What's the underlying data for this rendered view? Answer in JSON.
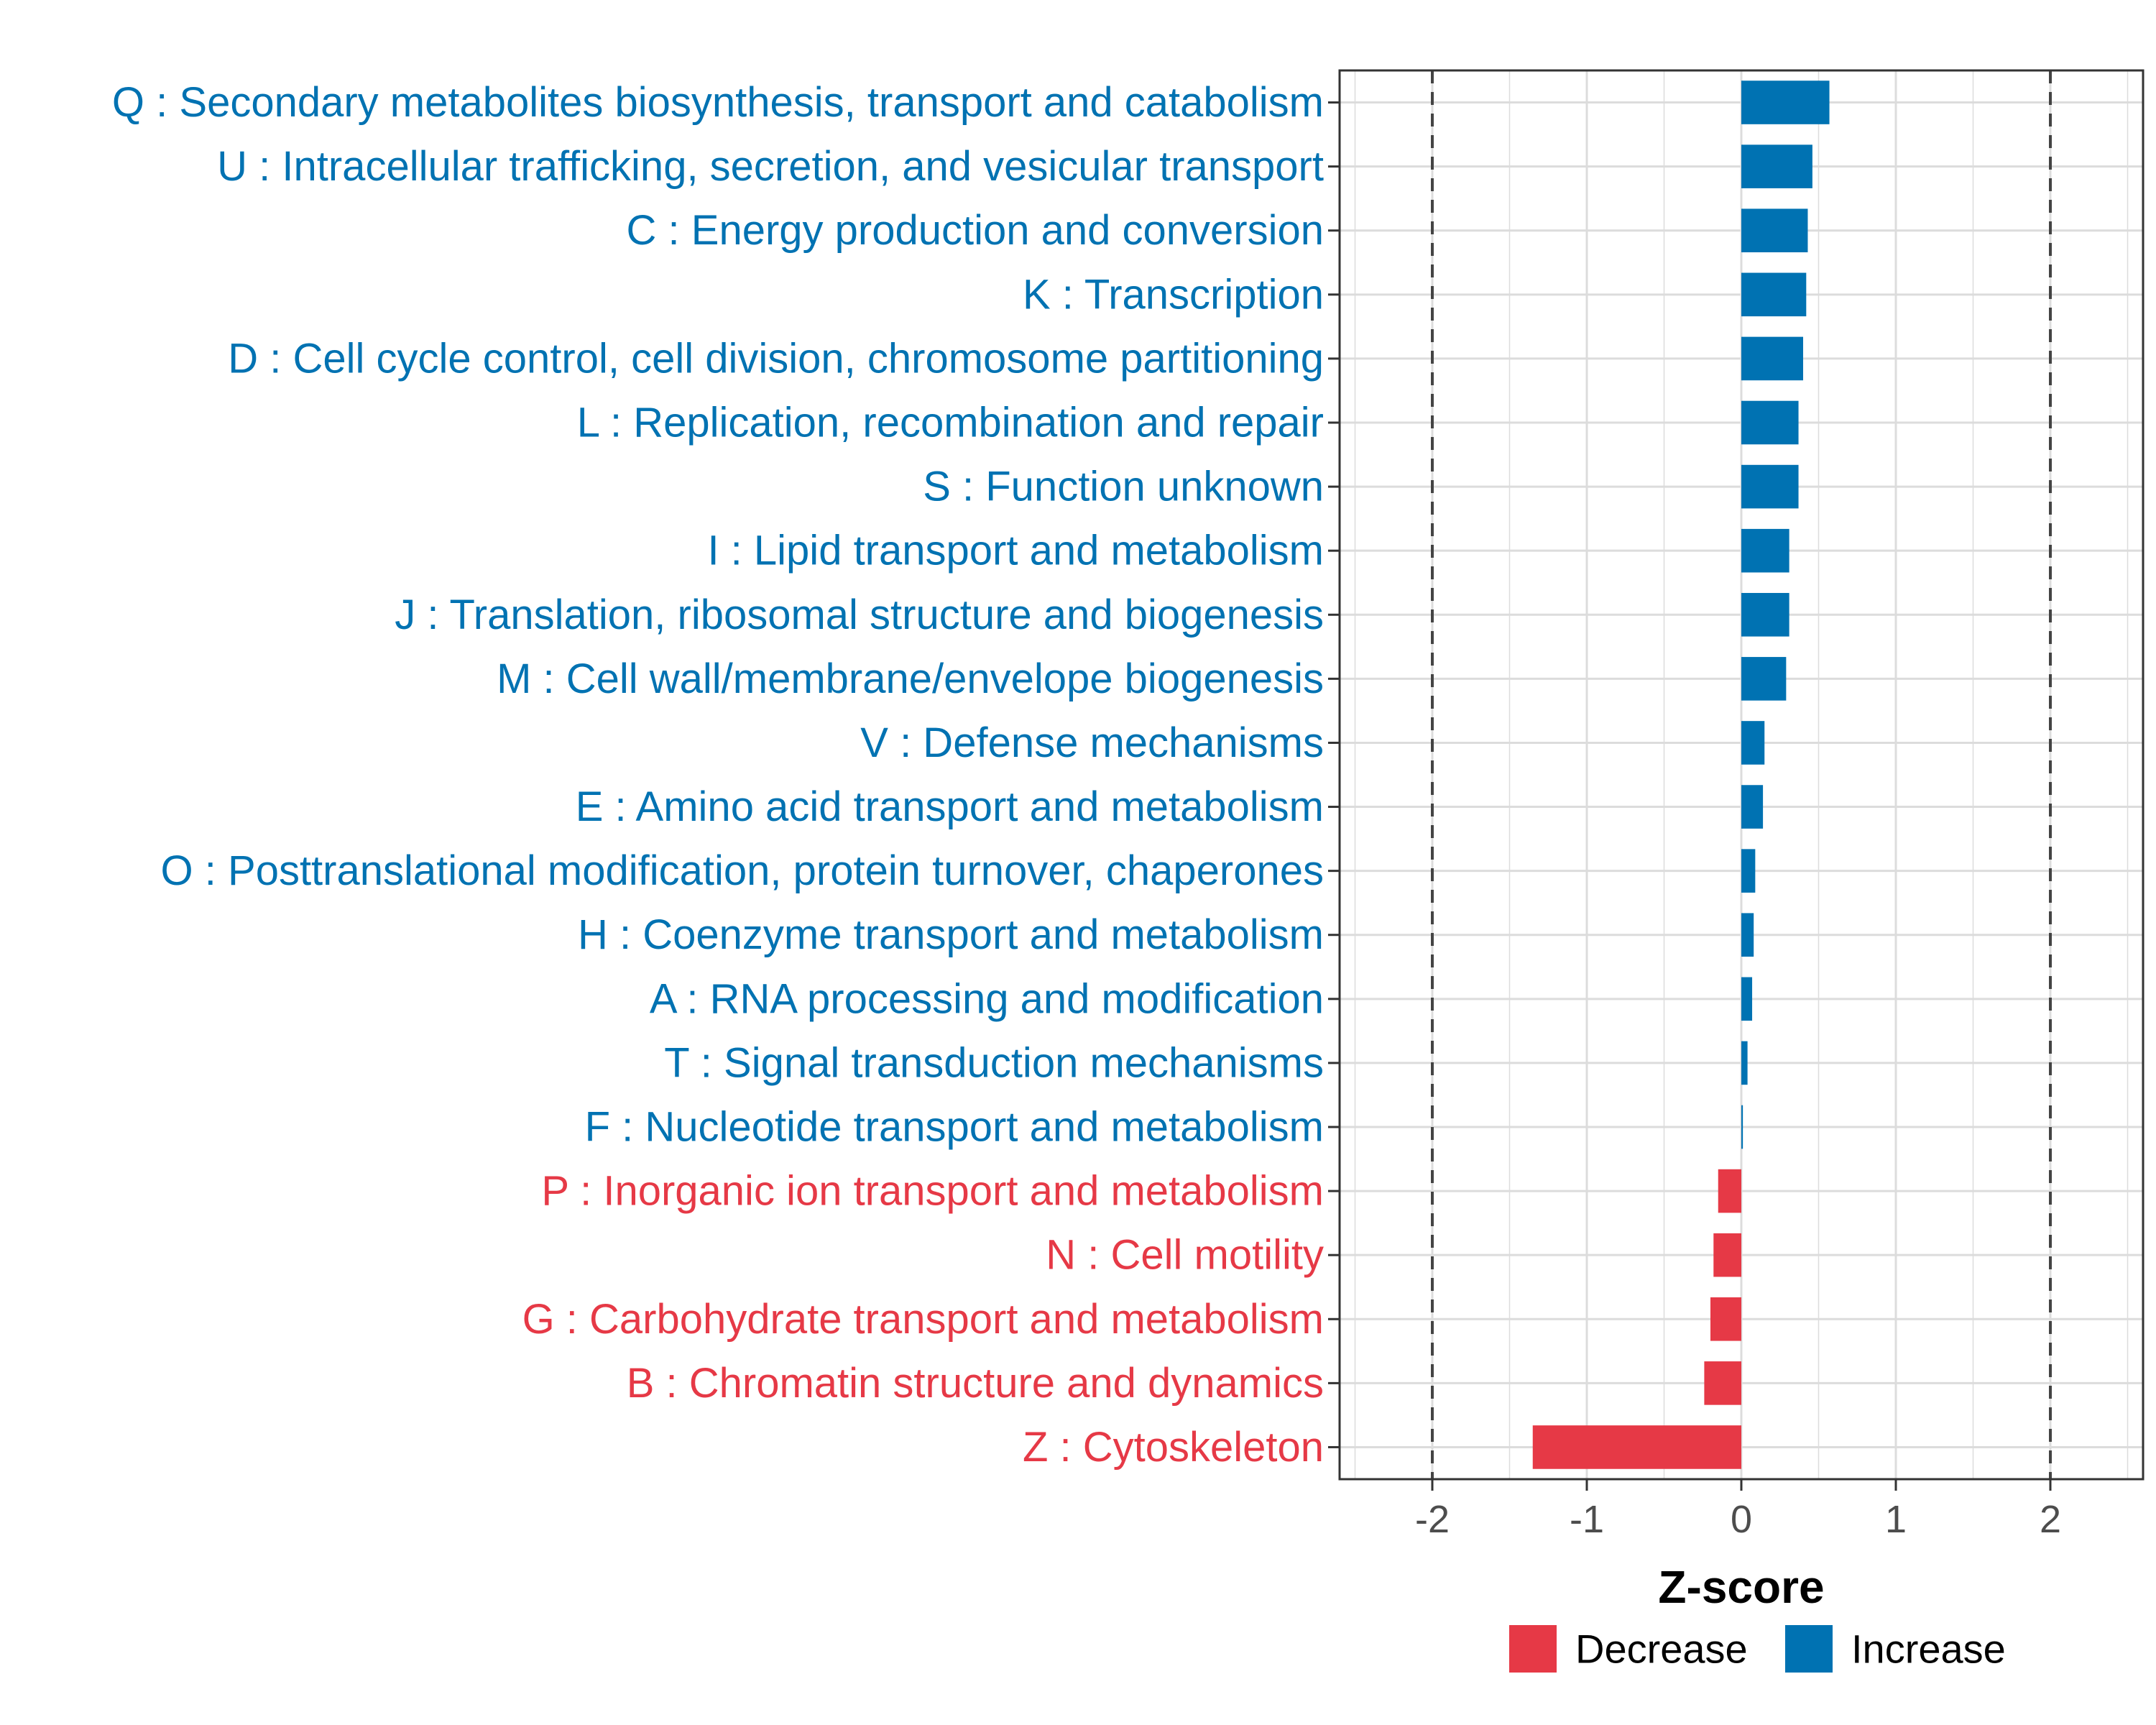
{
  "chart_data": {
    "type": "bar",
    "orientation": "horizontal",
    "title": "",
    "xlabel": "Z-score",
    "ylabel": "",
    "xlim": [
      -2.6,
      2.6
    ],
    "xticks": [
      "-2",
      "-1",
      "0",
      "1",
      "2"
    ],
    "xtick_values": [
      -2,
      -1,
      0,
      1,
      2
    ],
    "reference_lines": [
      -2,
      2
    ],
    "grid": true,
    "colors": {
      "Increase": "#0072b2",
      "Decrease": "#e63946"
    },
    "legend": {
      "position": "bottom",
      "entries": [
        "Decrease",
        "Increase"
      ]
    },
    "categories": [
      "Q : Secondary metabolites biosynthesis, transport and catabolism",
      "U : Intracellular trafficking, secretion, and vesicular transport",
      "C : Energy production and conversion",
      "K : Transcription",
      "D : Cell cycle control, cell division, chromosome partitioning",
      "L : Replication, recombination and repair",
      "S : Function unknown",
      "I : Lipid transport and metabolism",
      "J : Translation, ribosomal structure and biogenesis",
      "M : Cell wall/membrane/envelope biogenesis",
      "V : Defense mechanisms",
      "E : Amino acid transport and metabolism",
      "O : Posttranslational modification, protein turnover, chaperones",
      "H : Coenzyme transport and metabolism",
      "A : RNA processing and modification",
      "T : Signal transduction mechanisms",
      "F : Nucleotide transport and metabolism",
      "P : Inorganic ion transport and metabolism",
      "N : Cell motility",
      "G : Carbohydrate transport and metabolism",
      "B : Chromatin structure and dynamics",
      "Z : Cytoskeleton"
    ],
    "values": [
      0.57,
      0.46,
      0.43,
      0.42,
      0.4,
      0.37,
      0.37,
      0.31,
      0.31,
      0.29,
      0.15,
      0.14,
      0.09,
      0.08,
      0.07,
      0.04,
      0.01,
      -0.15,
      -0.18,
      -0.2,
      -0.24,
      -1.35
    ],
    "direction": [
      "Increase",
      "Increase",
      "Increase",
      "Increase",
      "Increase",
      "Increase",
      "Increase",
      "Increase",
      "Increase",
      "Increase",
      "Increase",
      "Increase",
      "Increase",
      "Increase",
      "Increase",
      "Increase",
      "Increase",
      "Decrease",
      "Decrease",
      "Decrease",
      "Decrease",
      "Decrease"
    ]
  }
}
